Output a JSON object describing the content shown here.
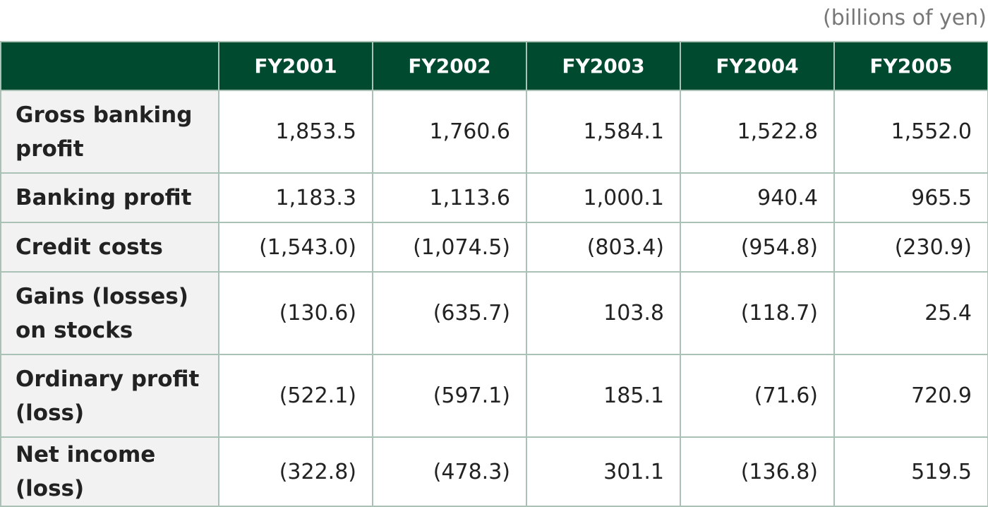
{
  "unit_note": "(billions of yen)",
  "table": {
    "columns": [
      "FY2001",
      "FY2002",
      "FY2003",
      "FY2004",
      "FY2005"
    ],
    "rows": [
      {
        "label": "Gross banking profit",
        "values": [
          "1,853.5",
          "1,760.6",
          "1,584.1",
          "1,522.8",
          "1,552.0"
        ]
      },
      {
        "label": "Banking profit",
        "values": [
          "1,183.3",
          "1,113.6",
          "1,000.1",
          "940.4",
          "965.5"
        ]
      },
      {
        "label": "Credit costs",
        "values": [
          "(1,543.0)",
          "(1,074.5)",
          "(803.4)",
          "(954.8)",
          "(230.9)"
        ]
      },
      {
        "label": "Gains (losses) on stocks",
        "values": [
          "(130.6)",
          "(635.7)",
          "103.8",
          "(118.7)",
          "25.4"
        ]
      },
      {
        "label": "Ordinary profit (loss)",
        "values": [
          "(522.1)",
          "(597.1)",
          "185.1",
          "(71.6)",
          "720.9"
        ]
      },
      {
        "label": "Net income (loss)",
        "values": [
          "(322.8)",
          "(478.3)",
          "301.1",
          "(136.8)",
          "519.5"
        ]
      }
    ]
  }
}
